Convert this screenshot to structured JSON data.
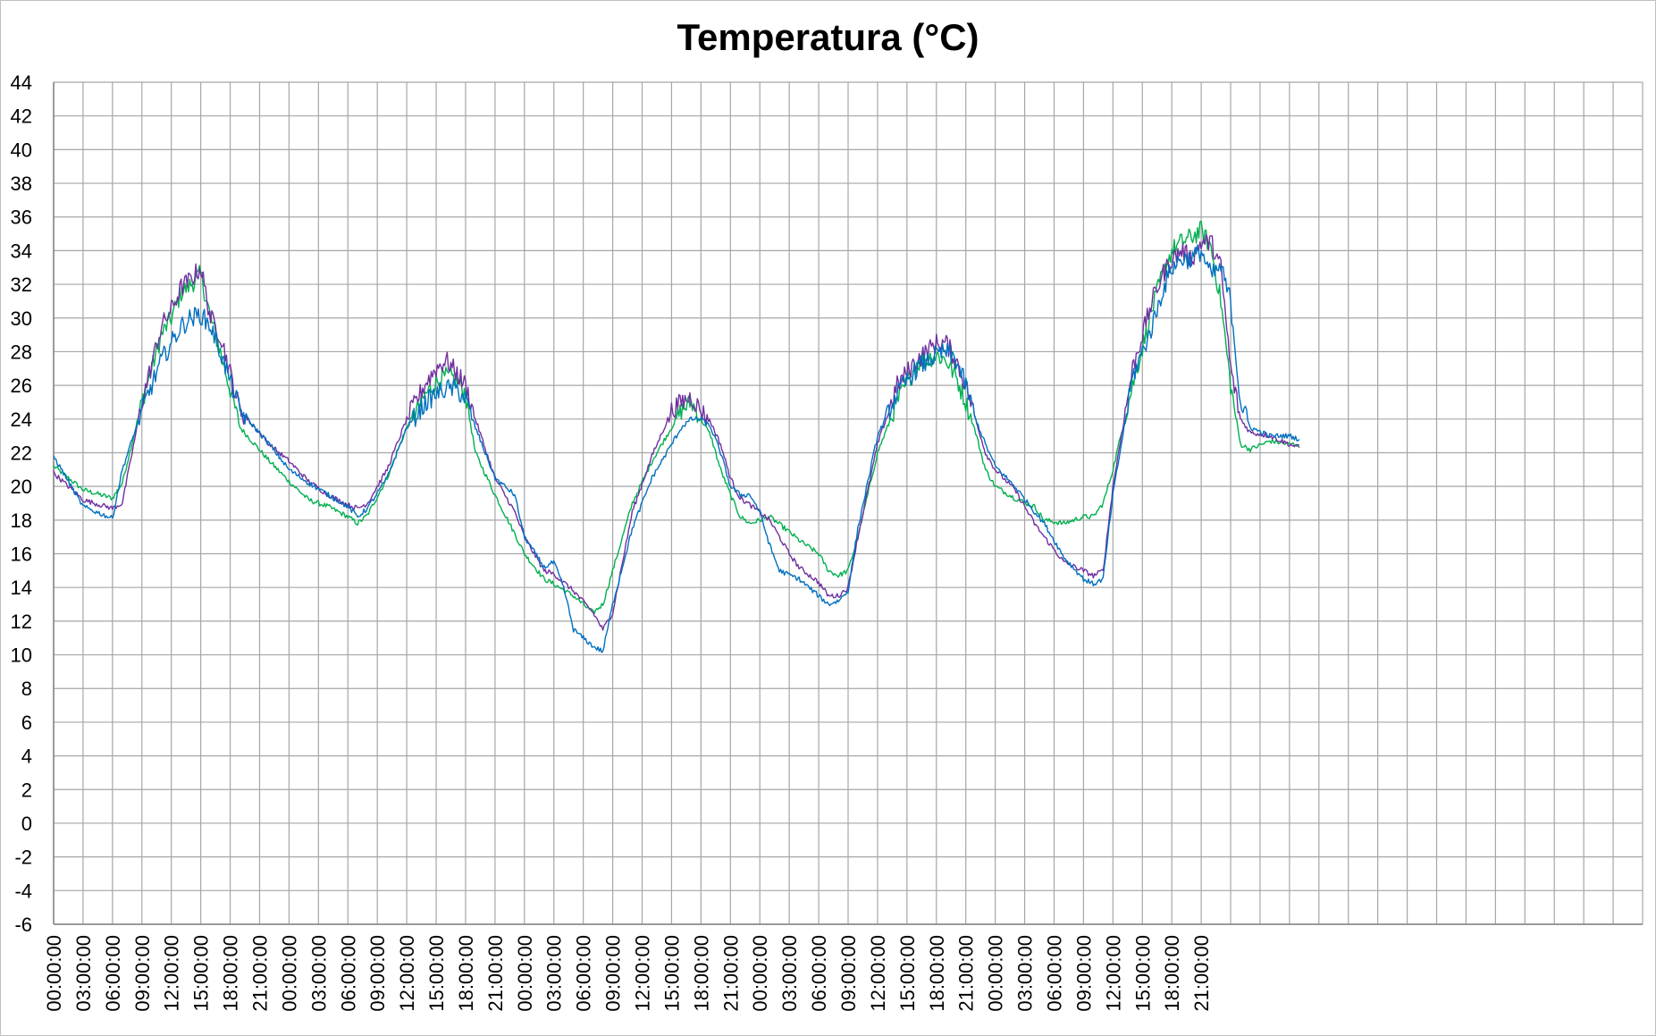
{
  "chart_data": {
    "type": "line",
    "title": "Temperatura (°C)",
    "xlabel": "",
    "ylabel": "",
    "ylim": [
      -6,
      44
    ],
    "ytick_step": 2,
    "x_hours": [
      0,
      162
    ],
    "x_tick_labels": [
      "00:00:00",
      "03:00:00",
      "06:00:00",
      "09:00:00",
      "12:00:00",
      "15:00:00",
      "18:00:00",
      "21:00:00",
      "00:00:00",
      "03:00:00",
      "06:00:00",
      "09:00:00",
      "12:00:00",
      "15:00:00",
      "18:00:00",
      "21:00:00",
      "00:00:00",
      "03:00:00",
      "06:00:00",
      "09:00:00",
      "12:00:00",
      "15:00:00",
      "18:00:00",
      "21:00:00",
      "00:00:00",
      "03:00:00",
      "06:00:00",
      "09:00:00",
      "12:00:00",
      "15:00:00",
      "18:00:00",
      "21:00:00",
      "00:00:00",
      "03:00:00",
      "06:00:00",
      "09:00:00",
      "12:00:00",
      "15:00:00",
      "18:00:00",
      "21:00:00"
    ],
    "grid": true,
    "legend": "none",
    "series": [
      {
        "color": "#00b050",
        "points": [
          [
            0,
            21.2
          ],
          [
            3,
            19.8
          ],
          [
            6,
            19.3
          ],
          [
            7,
            20.2
          ],
          [
            9,
            25
          ],
          [
            11,
            29
          ],
          [
            12,
            30
          ],
          [
            13,
            31.5
          ],
          [
            14,
            32
          ],
          [
            15,
            32.6
          ],
          [
            16,
            30
          ],
          [
            17,
            28
          ],
          [
            19,
            23.5
          ],
          [
            22,
            21.5
          ],
          [
            24,
            20.3
          ],
          [
            26,
            19.2
          ],
          [
            28,
            18.8
          ],
          [
            30,
            18.2
          ],
          [
            31,
            17.8
          ],
          [
            32,
            18.3
          ],
          [
            34,
            20.5
          ],
          [
            36,
            23.5
          ],
          [
            38,
            25.5
          ],
          [
            39,
            26.2
          ],
          [
            40,
            26.5
          ],
          [
            41,
            26.4
          ],
          [
            42,
            25.5
          ],
          [
            43,
            22
          ],
          [
            45,
            19.5
          ],
          [
            47,
            17.2
          ],
          [
            48,
            16
          ],
          [
            50,
            14.5
          ],
          [
            51,
            14.2
          ],
          [
            53,
            13.5
          ],
          [
            55,
            12.5
          ],
          [
            56,
            13
          ],
          [
            57,
            15
          ],
          [
            59,
            19
          ],
          [
            61,
            21.5
          ],
          [
            63,
            23.5
          ],
          [
            64,
            24.5
          ],
          [
            65,
            25
          ],
          [
            66,
            24
          ],
          [
            67,
            23
          ],
          [
            68,
            21
          ],
          [
            69,
            19.5
          ],
          [
            70,
            18.2
          ],
          [
            71,
            17.8
          ],
          [
            73,
            18.2
          ],
          [
            75,
            17.3
          ],
          [
            76,
            16.8
          ],
          [
            78,
            16
          ],
          [
            79,
            15
          ],
          [
            80,
            14.7
          ],
          [
            81,
            15
          ],
          [
            82,
            17
          ],
          [
            84,
            22
          ],
          [
            86,
            25
          ],
          [
            88,
            27.3
          ],
          [
            90,
            27.8
          ],
          [
            91,
            27.5
          ],
          [
            92,
            26.5
          ],
          [
            93,
            25
          ],
          [
            94,
            23.2
          ],
          [
            95,
            21
          ],
          [
            96,
            20
          ],
          [
            98,
            19.3
          ],
          [
            100,
            18.8
          ],
          [
            101,
            18
          ],
          [
            103,
            17.8
          ],
          [
            105,
            18.2
          ],
          [
            106,
            18.2
          ],
          [
            107,
            19
          ],
          [
            108,
            21
          ],
          [
            110,
            26
          ],
          [
            112,
            30.5
          ],
          [
            113,
            32.5
          ],
          [
            114,
            34
          ],
          [
            115,
            34.5
          ],
          [
            116,
            34.8
          ],
          [
            117,
            35.2
          ],
          [
            118,
            34.2
          ],
          [
            119,
            31
          ],
          [
            120,
            26
          ],
          [
            121,
            22.5
          ],
          [
            122,
            22.2
          ],
          [
            124,
            22.7
          ],
          [
            126,
            22.5
          ],
          [
            127,
            22.5
          ]
        ]
      },
      {
        "color": "#7030a0",
        "points": [
          [
            0,
            20.8
          ],
          [
            3,
            19.2
          ],
          [
            6,
            18.7
          ],
          [
            7,
            19
          ],
          [
            9,
            25
          ],
          [
            11,
            29.5
          ],
          [
            12,
            30.5
          ],
          [
            13,
            31.8
          ],
          [
            14,
            32.3
          ],
          [
            15,
            33
          ],
          [
            16,
            30
          ],
          [
            17,
            29
          ],
          [
            19,
            24.5
          ],
          [
            22,
            22.5
          ],
          [
            24,
            21.5
          ],
          [
            26,
            20.3
          ],
          [
            28,
            19.5
          ],
          [
            30,
            18.9
          ],
          [
            31,
            18.7
          ],
          [
            32,
            19
          ],
          [
            34,
            21
          ],
          [
            36,
            24
          ],
          [
            38,
            26.2
          ],
          [
            39,
            27
          ],
          [
            40,
            27.5
          ],
          [
            41,
            26.8
          ],
          [
            42,
            26
          ],
          [
            43,
            24
          ],
          [
            45,
            20.5
          ],
          [
            47,
            18.5
          ],
          [
            48,
            17
          ],
          [
            50,
            15
          ],
          [
            51,
            14.8
          ],
          [
            53,
            13.8
          ],
          [
            55,
            12.5
          ],
          [
            56,
            11.5
          ],
          [
            57,
            12.5
          ],
          [
            59,
            18.5
          ],
          [
            61,
            21.8
          ],
          [
            63,
            24.5
          ],
          [
            64,
            25
          ],
          [
            65,
            25.3
          ],
          [
            66,
            24.5
          ],
          [
            67,
            23.8
          ],
          [
            68,
            22.5
          ],
          [
            69,
            20.5
          ],
          [
            70,
            19.3
          ],
          [
            71,
            18.9
          ],
          [
            73,
            18
          ],
          [
            75,
            16
          ],
          [
            76,
            15.2
          ],
          [
            78,
            14.3
          ],
          [
            79,
            13.5
          ],
          [
            80,
            13.5
          ],
          [
            81,
            14
          ],
          [
            82,
            17
          ],
          [
            84,
            22.5
          ],
          [
            86,
            26
          ],
          [
            88,
            27.5
          ],
          [
            90,
            28.5
          ],
          [
            91,
            28.5
          ],
          [
            92,
            27.5
          ],
          [
            93,
            26
          ],
          [
            94,
            24
          ],
          [
            95,
            22
          ],
          [
            96,
            21
          ],
          [
            98,
            19.8
          ],
          [
            100,
            17.8
          ],
          [
            101,
            17
          ],
          [
            103,
            15.5
          ],
          [
            105,
            15
          ],
          [
            106,
            14.7
          ],
          [
            107,
            15
          ],
          [
            108,
            20
          ],
          [
            110,
            27
          ],
          [
            112,
            31
          ],
          [
            113,
            32.5
          ],
          [
            114,
            33.5
          ],
          [
            115,
            34
          ],
          [
            116,
            33.5
          ],
          [
            117,
            34.5
          ],
          [
            118,
            34.5
          ],
          [
            119,
            33
          ],
          [
            120,
            27
          ],
          [
            121,
            24
          ],
          [
            122,
            23.2
          ],
          [
            124,
            23
          ],
          [
            126,
            22.5
          ],
          [
            127,
            22.3
          ]
        ]
      },
      {
        "color": "#0070c0",
        "points": [
          [
            0,
            21.8
          ],
          [
            3,
            18.8
          ],
          [
            6,
            18.1
          ],
          [
            7,
            21
          ],
          [
            9,
            24.5
          ],
          [
            11,
            27.5
          ],
          [
            12,
            28.5
          ],
          [
            13,
            29.5
          ],
          [
            14,
            30
          ],
          [
            15,
            30.2
          ],
          [
            16,
            29.5
          ],
          [
            17,
            28
          ],
          [
            19,
            24.5
          ],
          [
            22,
            22.5
          ],
          [
            24,
            21
          ],
          [
            26,
            20.2
          ],
          [
            28,
            19.5
          ],
          [
            30,
            18.8
          ],
          [
            31,
            18.2
          ],
          [
            32,
            18.7
          ],
          [
            34,
            20.5
          ],
          [
            36,
            23.5
          ],
          [
            38,
            25
          ],
          [
            39,
            25.5
          ],
          [
            40,
            25.8
          ],
          [
            41,
            25.8
          ],
          [
            42,
            25.2
          ],
          [
            43,
            23.5
          ],
          [
            45,
            20.5
          ],
          [
            47,
            19.5
          ],
          [
            48,
            17
          ],
          [
            50,
            15.2
          ],
          [
            51,
            15.5
          ],
          [
            52,
            14
          ],
          [
            53,
            11.5
          ],
          [
            55,
            10.5
          ],
          [
            56,
            10.2
          ],
          [
            57,
            13
          ],
          [
            59,
            17.5
          ],
          [
            61,
            20.5
          ],
          [
            63,
            22.5
          ],
          [
            64,
            23.5
          ],
          [
            65,
            24
          ],
          [
            66,
            24
          ],
          [
            67,
            23.5
          ],
          [
            68,
            22
          ],
          [
            69,
            20
          ],
          [
            70,
            19.5
          ],
          [
            71,
            19.5
          ],
          [
            72,
            18.5
          ],
          [
            73,
            16.5
          ],
          [
            74,
            15
          ],
          [
            76,
            14.5
          ],
          [
            78,
            13.5
          ],
          [
            79,
            13
          ],
          [
            80,
            13.2
          ],
          [
            81,
            13.8
          ],
          [
            82,
            17.5
          ],
          [
            84,
            23
          ],
          [
            86,
            25.5
          ],
          [
            88,
            27
          ],
          [
            90,
            27.8
          ],
          [
            91,
            28
          ],
          [
            92,
            27.5
          ],
          [
            93,
            26
          ],
          [
            94,
            24
          ],
          [
            95,
            22.5
          ],
          [
            96,
            21.2
          ],
          [
            98,
            20
          ],
          [
            100,
            18.5
          ],
          [
            101,
            17.8
          ],
          [
            103,
            15.8
          ],
          [
            105,
            14.5
          ],
          [
            106,
            14.2
          ],
          [
            107,
            14.5
          ],
          [
            108,
            19.5
          ],
          [
            110,
            26.5
          ],
          [
            112,
            29.5
          ],
          [
            113,
            31.5
          ],
          [
            114,
            33
          ],
          [
            115,
            33.5
          ],
          [
            116,
            33.5
          ],
          [
            117,
            34
          ],
          [
            118,
            32.5
          ],
          [
            119,
            33
          ],
          [
            120,
            31
          ],
          [
            121,
            25
          ],
          [
            122,
            23.5
          ],
          [
            124,
            23
          ],
          [
            126,
            23
          ],
          [
            127,
            22.8
          ]
        ]
      }
    ]
  }
}
